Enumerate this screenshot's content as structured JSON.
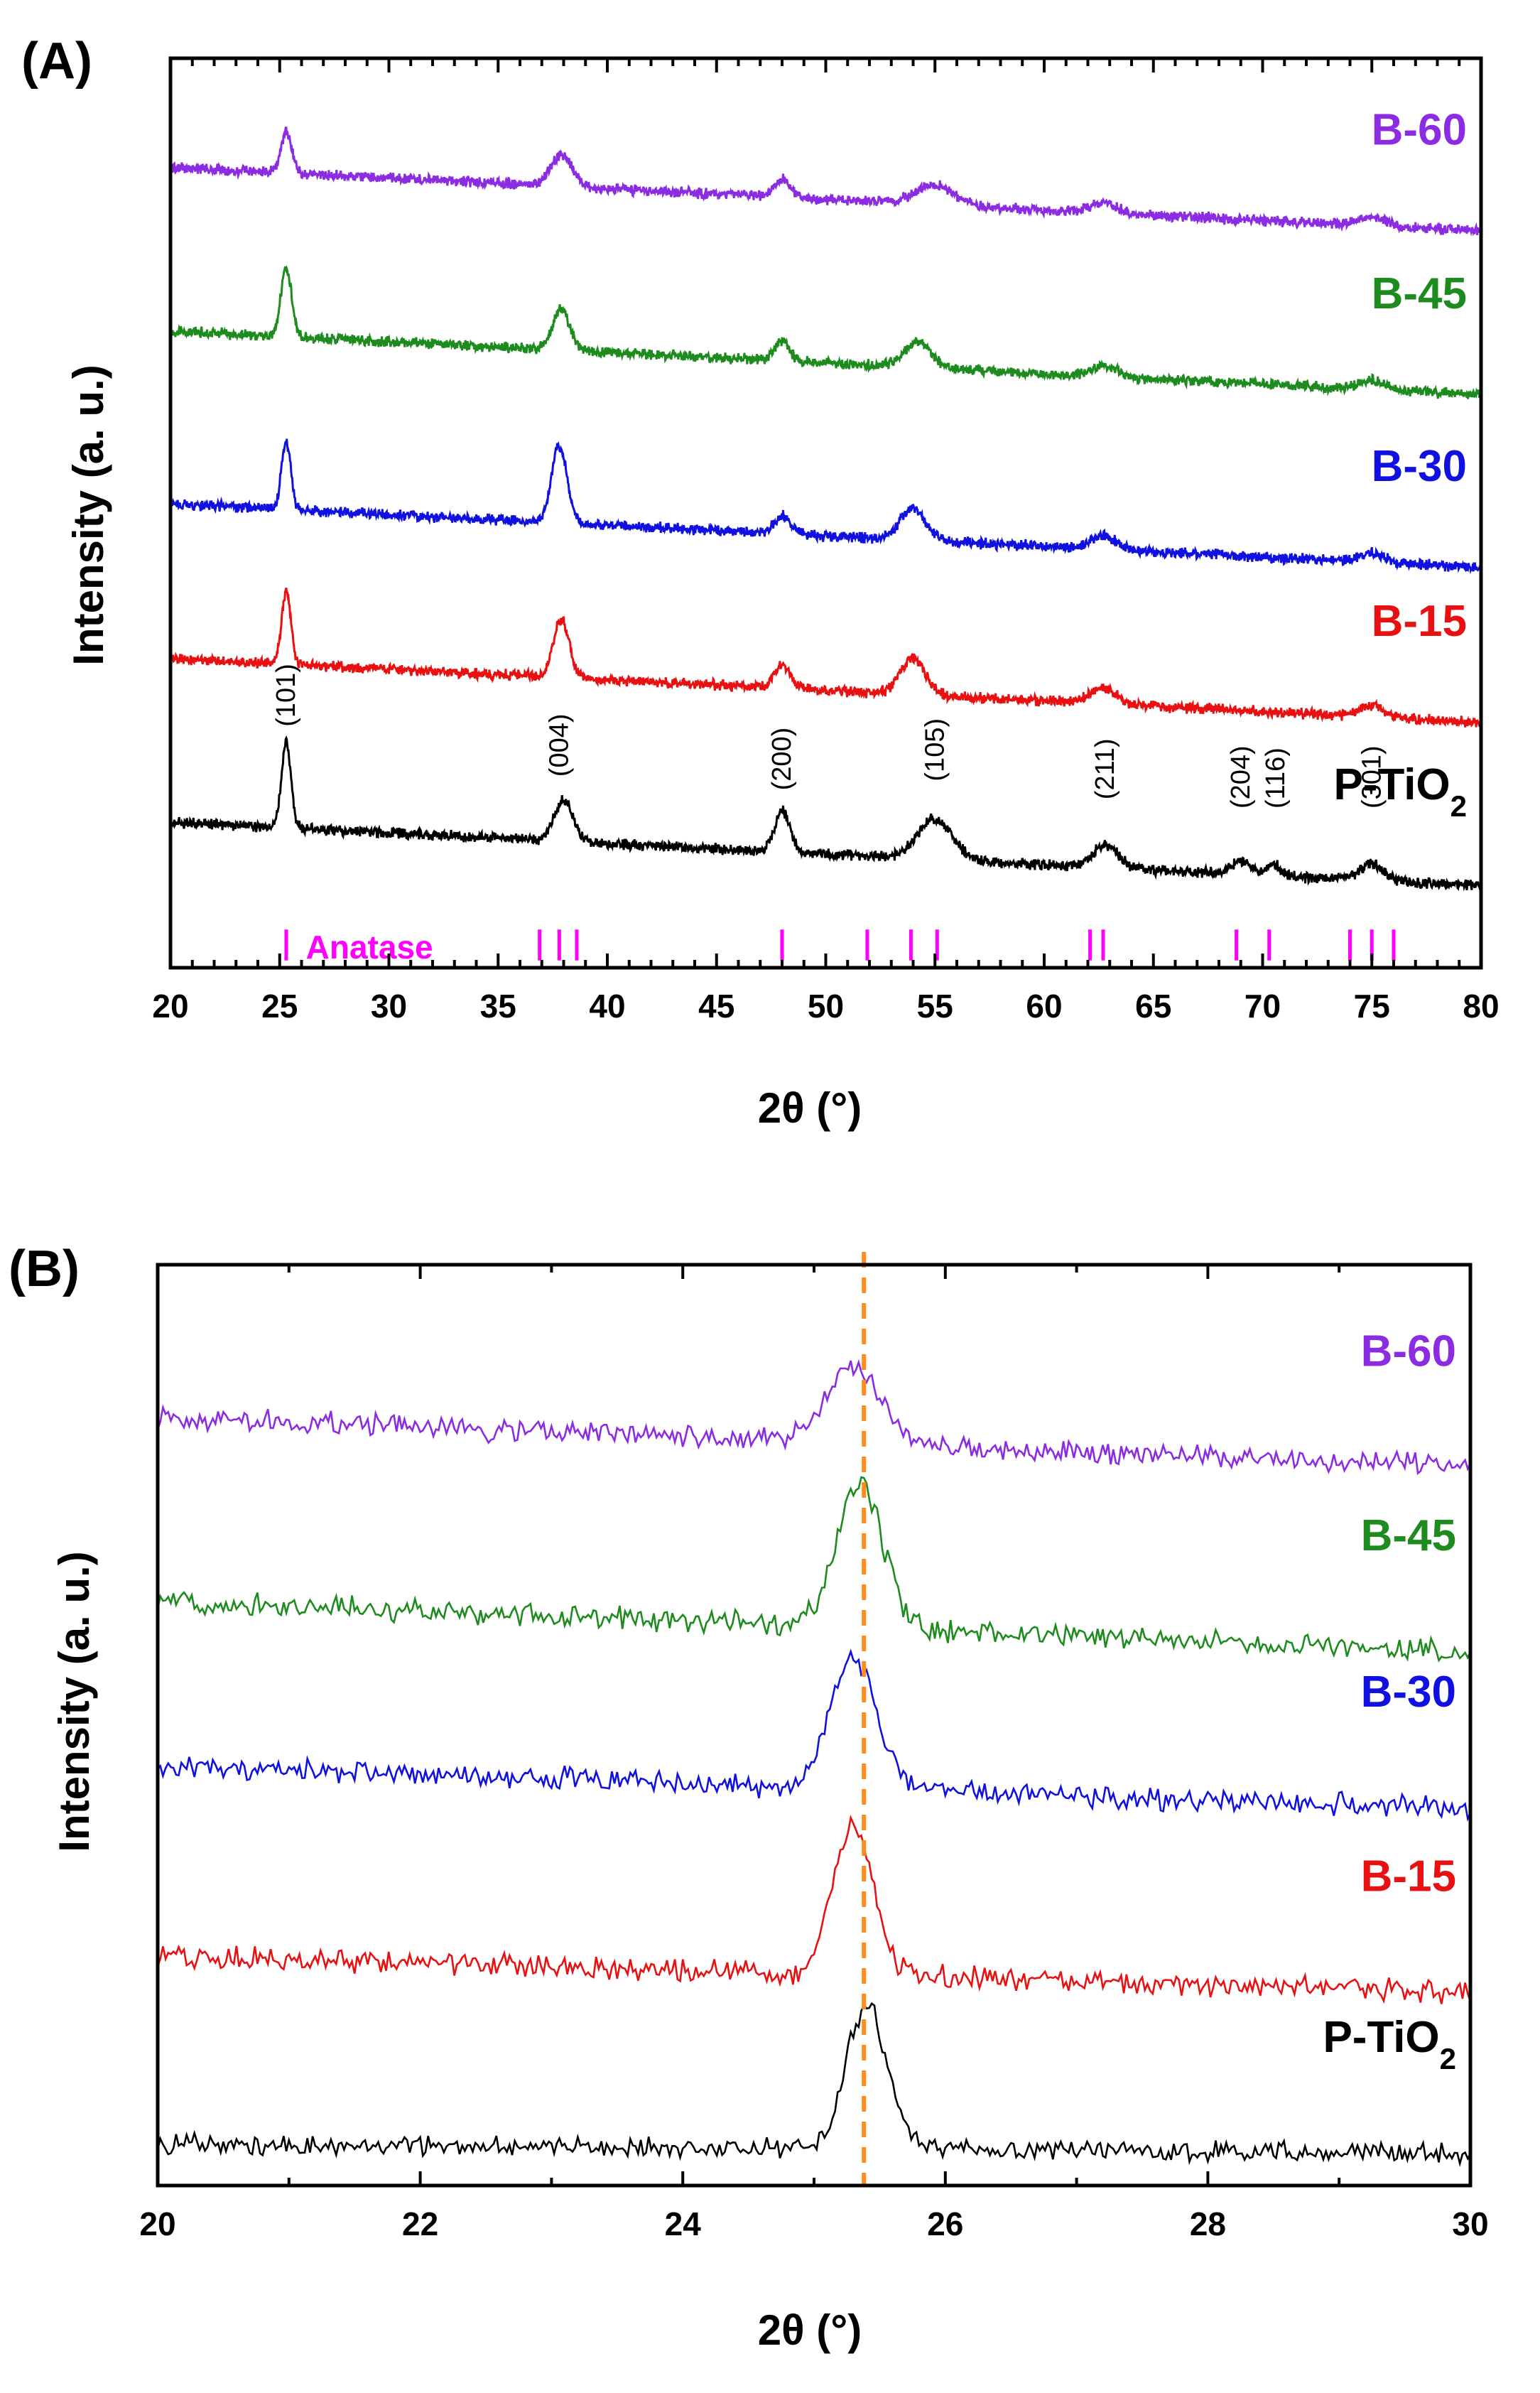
{
  "figure": {
    "colors": {
      "axis": "#000000",
      "B-60": "#8B2BE2",
      "B-45": "#1E8B1E",
      "B-30": "#1010E0",
      "B-15": "#E81010",
      "P-TiO2": "#000000",
      "anatase": "#FF00FF",
      "ref_line": "#FF8C1A"
    }
  },
  "chart_data": [
    {
      "panel_label": "(A)",
      "type": "line",
      "xlabel": "2θ (°)",
      "ylabel": "Intensity (a. u.)",
      "xlim": [
        20,
        80
      ],
      "ylim": [
        0,
        10
      ],
      "xticks": [
        "20",
        "25",
        "30",
        "35",
        "40",
        "45",
        "50",
        "55",
        "60",
        "65",
        "70",
        "75",
        "80"
      ],
      "series": [
        {
          "name": "B-60",
          "label": "B-60",
          "color_key": "B-60",
          "baseline": 8.8,
          "drop": 0.7,
          "noise": 0.07,
          "peaks": [
            [
              25.3,
              0.45,
              0.35
            ],
            [
              37.9,
              0.35,
              0.7
            ],
            [
              48.0,
              0.2,
              0.5
            ],
            [
              55.0,
              0.22,
              1.2
            ],
            [
              62.7,
              0.12,
              0.8
            ],
            [
              75.0,
              0.1,
              0.8
            ]
          ]
        },
        {
          "name": "B-45",
          "label": "B-45",
          "color_key": "B-45",
          "baseline": 7.0,
          "drop": 0.7,
          "noise": 0.07,
          "peaks": [
            [
              25.3,
              0.75,
              0.35
            ],
            [
              37.9,
              0.45,
              0.55
            ],
            [
              48.0,
              0.22,
              0.5
            ],
            [
              54.2,
              0.28,
              0.9
            ],
            [
              62.7,
              0.12,
              0.8
            ],
            [
              75.0,
              0.1,
              0.8
            ]
          ]
        },
        {
          "name": "B-30",
          "label": "B-30",
          "color_key": "B-30",
          "baseline": 5.1,
          "drop": 0.7,
          "noise": 0.07,
          "peaks": [
            [
              25.3,
              0.75,
              0.3
            ],
            [
              37.8,
              0.85,
              0.5
            ],
            [
              48.0,
              0.2,
              0.5
            ],
            [
              54.0,
              0.35,
              0.8
            ],
            [
              62.7,
              0.15,
              0.8
            ],
            [
              75.0,
              0.1,
              0.8
            ]
          ]
        },
        {
          "name": "B-15",
          "label": "B-15",
          "color_key": "B-15",
          "baseline": 3.4,
          "drop": 0.7,
          "noise": 0.07,
          "peaks": [
            [
              25.3,
              0.8,
              0.3
            ],
            [
              37.9,
              0.65,
              0.5
            ],
            [
              48.0,
              0.25,
              0.5
            ],
            [
              54.0,
              0.4,
              0.8
            ],
            [
              62.7,
              0.18,
              0.8
            ],
            [
              75.0,
              0.12,
              0.8
            ]
          ]
        },
        {
          "name": "P-TiO2",
          "label": "P-TiO",
          "label_sub": "2",
          "color_key": "P-TiO2",
          "baseline": 1.6,
          "drop": 0.7,
          "noise": 0.07,
          "peaks": [
            [
              25.3,
              0.95,
              0.3
            ],
            [
              38.0,
              0.45,
              0.6
            ],
            [
              48.0,
              0.45,
              0.5
            ],
            [
              55.0,
              0.45,
              1.1
            ],
            [
              62.8,
              0.25,
              0.8
            ],
            [
              69.0,
              0.15,
              0.6
            ],
            [
              70.5,
              0.12,
              0.5
            ],
            [
              75.0,
              0.18,
              0.8
            ]
          ]
        }
      ],
      "hkl_labels": [
        {
          "text": "(101)",
          "x": 25.3,
          "y": 2.65
        },
        {
          "text": "(004)",
          "x": 37.8,
          "y": 2.1
        },
        {
          "text": "(200)",
          "x": 48.0,
          "y": 1.95
        },
        {
          "text": "(105)",
          "x": 55.0,
          "y": 2.05
        },
        {
          "text": "(211)",
          "x": 62.8,
          "y": 1.85
        },
        {
          "text": "(204)",
          "x": 69.0,
          "y": 1.75
        },
        {
          "text": "(116)",
          "x": 70.6,
          "y": 1.75
        },
        {
          "text": "(301)",
          "x": 75.0,
          "y": 1.75
        }
      ],
      "anatase_label": "Anatase",
      "anatase_ref": [
        25.3,
        36.9,
        37.8,
        38.6,
        48.0,
        51.9,
        53.9,
        55.1,
        62.1,
        62.7,
        68.8,
        70.3,
        74.0,
        75.0,
        76.0
      ]
    },
    {
      "panel_label": "(B)",
      "type": "line",
      "xlabel": "2θ (°)",
      "ylabel": "Intensity (a. u.)",
      "xlim": [
        20,
        30
      ],
      "ylim": [
        0,
        10
      ],
      "xticks": [
        "20",
        "22",
        "24",
        "26",
        "28",
        "30"
      ],
      "ref_line_x": 25.38,
      "series": [
        {
          "name": "B-60",
          "label": "B-60",
          "color_key": "B-60",
          "baseline": 8.35,
          "drop": 0.55,
          "noise": 0.15,
          "peaks": [
            [
              25.3,
              0.85,
              0.28
            ]
          ]
        },
        {
          "name": "B-45",
          "label": "B-45",
          "color_key": "B-45",
          "baseline": 6.35,
          "drop": 0.55,
          "noise": 0.15,
          "peaks": [
            [
              25.35,
              1.55,
              0.25
            ]
          ]
        },
        {
          "name": "B-30",
          "label": "B-30",
          "color_key": "B-30",
          "baseline": 4.55,
          "drop": 0.45,
          "noise": 0.15,
          "peaks": [
            [
              25.3,
              1.4,
              0.25
            ]
          ]
        },
        {
          "name": "B-15",
          "label": "B-15",
          "color_key": "B-15",
          "baseline": 2.5,
          "drop": 0.4,
          "noise": 0.15,
          "peaks": [
            [
              25.3,
              1.6,
              0.22
            ]
          ]
        },
        {
          "name": "P-TiO2",
          "label": "P-TiO",
          "label_sub": "2",
          "color_key": "P-TiO2",
          "baseline": 0.45,
          "drop": 0.1,
          "noise": 0.13,
          "peaks": [
            [
              25.4,
              1.55,
              0.22
            ]
          ]
        }
      ]
    }
  ]
}
